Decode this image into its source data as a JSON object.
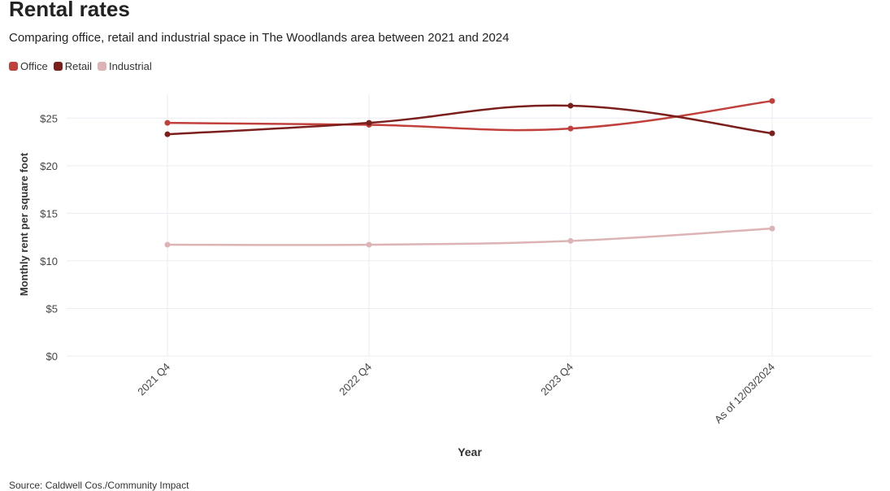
{
  "header": {
    "title": "Rental rates",
    "subtitle": "Comparing office, retail and industrial space in The Woodlands area between 2021 and 2024"
  },
  "footer": {
    "source": "Source: Caldwell Cos./Community Impact"
  },
  "colors": {
    "office": "#c0413c",
    "retail": "#7a1f1c",
    "industrial": "#dcb4b6",
    "grid": "#ececf2",
    "axis_text": "#444444"
  },
  "chart_data": {
    "type": "line",
    "title": "Rental rates",
    "subtitle": "Comparing office, retail and industrial space in The Woodlands area between 2021 and 2024",
    "xlabel": "Year",
    "ylabel": "Monthly rent per square foot",
    "categories": [
      "2021 Q4",
      "2022 Q4",
      "2023 Q4",
      "As of 12/03/2024"
    ],
    "ylim": [
      0,
      27.5
    ],
    "yticks": [
      0,
      5,
      10,
      15,
      20,
      25
    ],
    "ytick_labels": [
      "$0",
      "$5",
      "$10",
      "$15",
      "$20",
      "$25"
    ],
    "grid": true,
    "legend_position": "top-left",
    "series": [
      {
        "name": "Office",
        "color": "#c0413c",
        "values": [
          24.5,
          24.3,
          23.9,
          26.8
        ]
      },
      {
        "name": "Retail",
        "color": "#7a1f1c",
        "values": [
          23.3,
          24.5,
          26.3,
          23.4
        ]
      },
      {
        "name": "Industrial",
        "color": "#dcb4b6",
        "values": [
          11.7,
          11.7,
          12.1,
          13.4
        ]
      }
    ]
  }
}
